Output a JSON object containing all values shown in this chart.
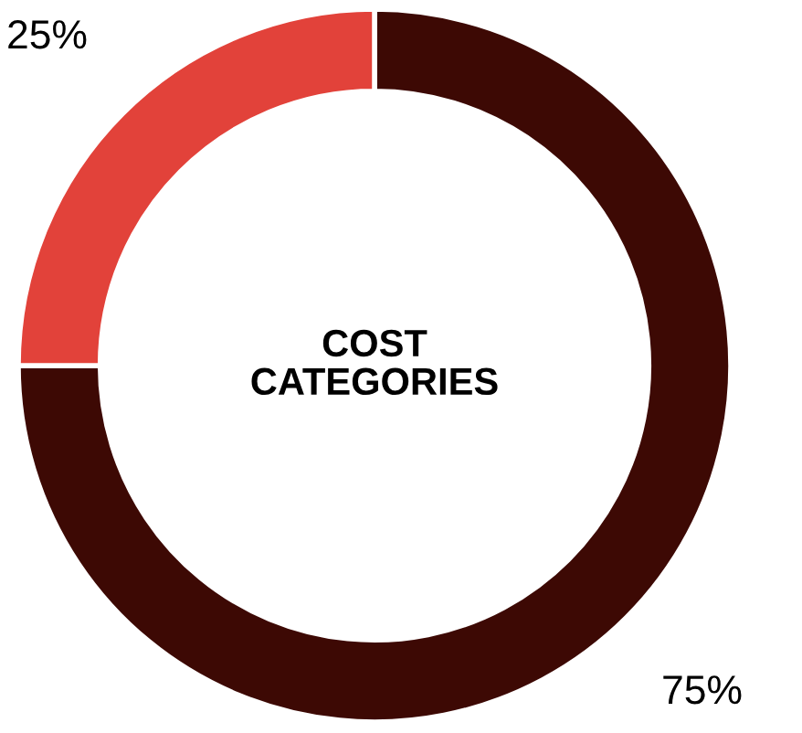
{
  "chart_data": {
    "type": "donut",
    "title": "COST\nCATEGORIES",
    "categories": [
      null,
      null
    ],
    "values": [
      75,
      25
    ],
    "colors": [
      "#3d0904",
      "#e2423a"
    ],
    "value_labels": [
      "75%",
      "25%"
    ]
  }
}
